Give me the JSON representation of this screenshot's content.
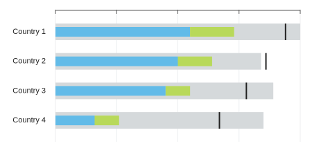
{
  "chart_data": {
    "type": "bullet",
    "categories": [
      "Country 1",
      "Country 2",
      "Country 3",
      "Country 4"
    ],
    "ranges": {
      "color": "#d5d9db",
      "values": [
        100,
        84,
        89,
        85
      ]
    },
    "series": [
      {
        "color": "#62bbe8",
        "values": [
          55,
          50,
          45,
          16
        ]
      },
      {
        "color": "#b8d95a",
        "values": [
          18,
          14,
          10,
          10
        ]
      }
    ],
    "markers": {
      "color": "#222222",
      "values": [
        94,
        86,
        78,
        67
      ]
    },
    "xlim": [
      0,
      100
    ],
    "xticks": [
      0,
      25,
      50,
      75,
      100
    ],
    "grid": true
  }
}
